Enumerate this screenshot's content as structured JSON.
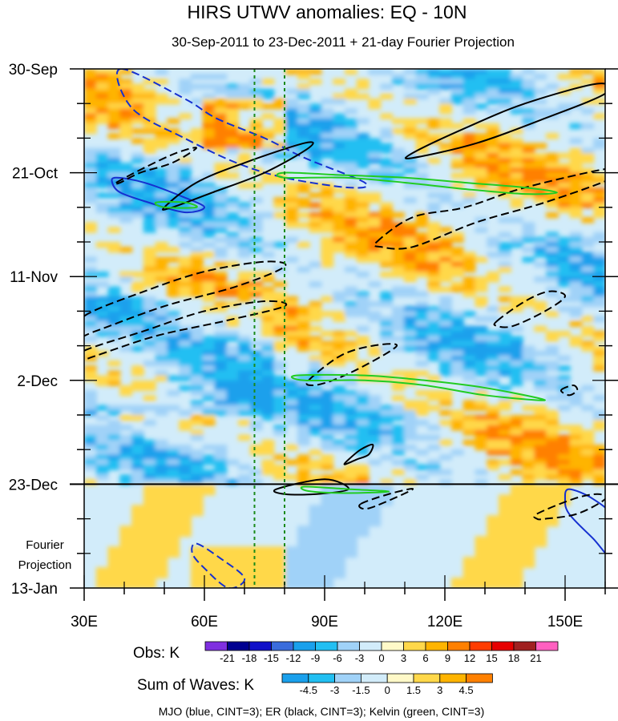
{
  "chart_data": {
    "type": "heatmap",
    "title": "HIRS UTWV anomalies: EQ - 10N",
    "subtitle": "30-Sep-2011 to 23-Dec-2011 + 21-day Fourier Projection",
    "x_axis": {
      "range": [
        30,
        160
      ],
      "ticks": [
        {
          "value": 30,
          "label": "30E"
        },
        {
          "value": 60,
          "label": "60E"
        },
        {
          "value": 90,
          "label": "90E"
        },
        {
          "value": 120,
          "label": "120E"
        },
        {
          "value": 150,
          "label": "150E"
        }
      ]
    },
    "y_axis": {
      "range_days": [
        0,
        105
      ],
      "reversed": true,
      "ticks": [
        {
          "day": 0,
          "label": "30-Sep"
        },
        {
          "day": 21,
          "label": "21-Oct"
        },
        {
          "day": 42,
          "label": "11-Nov"
        },
        {
          "day": 63,
          "label": "2-Dec"
        },
        {
          "day": 84,
          "label": "23-Dec"
        },
        {
          "day": 105,
          "label": "13-Jan"
        }
      ]
    },
    "projection_label": [
      "Fourier",
      "Projection"
    ],
    "projection_start_day": 84,
    "reference_longitudes": [
      72.5,
      80
    ],
    "obs_colorbar": {
      "label": "Obs: K",
      "levels": [
        "-21",
        "-18",
        "-15",
        "-12",
        "-9",
        "-6",
        "-3",
        "0",
        "3",
        "6",
        "9",
        "12",
        "15",
        "18",
        "21"
      ],
      "colors": [
        "#7f2fe0",
        "#000090",
        "#1010c8",
        "#3a6cdc",
        "#1aa0ec",
        "#22bff2",
        "#a0d2f8",
        "#d2ecfa",
        "#fff9c8",
        "#ffd84a",
        "#ffb400",
        "#ff8000",
        "#ff3c00",
        "#e60000",
        "#a02020",
        "#ff60c0"
      ]
    },
    "wave_colorbar": {
      "label": "Sum of Waves: K",
      "levels": [
        "-4.5",
        "-3",
        "-1.5",
        "0",
        "1.5",
        "3",
        "4.5"
      ],
      "colors": [
        "#1aa0ec",
        "#22bff2",
        "#a0d2f8",
        "#d2ecfa",
        "#fff9c8",
        "#ffd84a",
        "#ffb400",
        "#ff8000"
      ]
    },
    "contours": [
      {
        "wave": "MJO",
        "color": "#1530d0",
        "sign": "negative",
        "dashed": true,
        "points": [
          [
            39,
            0
          ],
          [
            55,
            6
          ],
          [
            63,
            10
          ],
          [
            75,
            14
          ],
          [
            85,
            18
          ],
          [
            100,
            23
          ],
          [
            96,
            24
          ],
          [
            80,
            22
          ],
          [
            68,
            19
          ],
          [
            55,
            14
          ],
          [
            42,
            8
          ]
        ]
      },
      {
        "wave": "MJO",
        "color": "#1530d0",
        "sign": "negative",
        "dashed": true,
        "points": [
          [
            58,
            96
          ],
          [
            64,
            99
          ],
          [
            70,
            103
          ],
          [
            66,
            105
          ],
          [
            60,
            101
          ],
          [
            57,
            98
          ]
        ]
      },
      {
        "wave": "MJO",
        "color": "#1530d0",
        "sign": "positive",
        "dashed": false,
        "points": [
          [
            38,
            22
          ],
          [
            45,
            23
          ],
          [
            55,
            26
          ],
          [
            60,
            28
          ],
          [
            55,
            29
          ],
          [
            46,
            27
          ],
          [
            39,
            25
          ],
          [
            37,
            23
          ]
        ]
      },
      {
        "wave": "MJO",
        "color": "#1530d0",
        "sign": "positive",
        "dashed": false,
        "points": [
          [
            151,
            85
          ],
          [
            157,
            87
          ],
          [
            162,
            91
          ],
          [
            162,
            99
          ],
          [
            157,
            95
          ],
          [
            151,
            90
          ],
          [
            150,
            87
          ]
        ]
      },
      {
        "wave": "ER",
        "color": "#000000",
        "sign": "positive",
        "dashed": false,
        "points": [
          [
            112,
            17
          ],
          [
            125,
            12
          ],
          [
            140,
            7
          ],
          [
            158,
            3
          ],
          [
            160,
            5
          ],
          [
            145,
            10
          ],
          [
            128,
            15
          ],
          [
            112,
            18
          ]
        ]
      },
      {
        "wave": "ER",
        "color": "#000000",
        "sign": "positive",
        "dashed": false,
        "points": [
          [
            50,
            28
          ],
          [
            58,
            23
          ],
          [
            70,
            19
          ],
          [
            85,
            15
          ],
          [
            86,
            16
          ],
          [
            75,
            21
          ],
          [
            62,
            25
          ],
          [
            52,
            28
          ]
        ]
      },
      {
        "wave": "ER",
        "color": "#000000",
        "sign": "positive",
        "dashed": false,
        "points": [
          [
            96,
            79
          ],
          [
            99,
            77
          ],
          [
            102,
            76
          ],
          [
            101,
            78
          ],
          [
            98,
            79
          ],
          [
            95,
            80
          ]
        ]
      },
      {
        "wave": "ER",
        "color": "#000000",
        "sign": "positive",
        "dashed": false,
        "points": [
          [
            78,
            85
          ],
          [
            90,
            83
          ],
          [
            96,
            85
          ],
          [
            88,
            86
          ],
          [
            80,
            86
          ]
        ]
      },
      {
        "wave": "ER",
        "color": "#000000",
        "sign": "negative",
        "dashed": true,
        "points": [
          [
            38,
            23
          ],
          [
            45,
            20
          ],
          [
            53,
            17
          ],
          [
            58,
            16
          ],
          [
            52,
            19
          ],
          [
            44,
            21
          ],
          [
            39,
            23
          ]
        ]
      },
      {
        "wave": "ER",
        "color": "#000000",
        "sign": "negative",
        "dashed": true,
        "points": [
          [
            30,
            50
          ],
          [
            45,
            45
          ],
          [
            60,
            41
          ],
          [
            75,
            39
          ],
          [
            80,
            40
          ],
          [
            68,
            44
          ],
          [
            50,
            48
          ],
          [
            33,
            53
          ],
          [
            29,
            54
          ]
        ]
      },
      {
        "wave": "ER",
        "color": "#000000",
        "sign": "negative",
        "dashed": true,
        "points": [
          [
            30,
            57
          ],
          [
            45,
            53
          ],
          [
            60,
            49
          ],
          [
            75,
            47
          ],
          [
            80,
            48
          ],
          [
            65,
            51
          ],
          [
            48,
            54
          ],
          [
            33,
            58
          ],
          [
            29,
            59
          ]
        ]
      },
      {
        "wave": "ER",
        "color": "#000000",
        "sign": "negative",
        "dashed": true,
        "points": [
          [
            103,
            35
          ],
          [
            112,
            30
          ],
          [
            125,
            28
          ],
          [
            140,
            24
          ],
          [
            162,
            20
          ],
          [
            162,
            22
          ],
          [
            145,
            27
          ],
          [
            128,
            31
          ],
          [
            112,
            36
          ],
          [
            104,
            36
          ]
        ]
      },
      {
        "wave": "ER",
        "color": "#000000",
        "sign": "negative",
        "dashed": true,
        "points": [
          [
            133,
            51
          ],
          [
            140,
            47
          ],
          [
            146,
            45
          ],
          [
            150,
            46
          ],
          [
            145,
            49
          ],
          [
            137,
            52
          ],
          [
            133,
            52
          ]
        ]
      },
      {
        "wave": "ER",
        "color": "#000000",
        "sign": "negative",
        "dashed": true,
        "points": [
          [
            86,
            63
          ],
          [
            94,
            58
          ],
          [
            102,
            56
          ],
          [
            108,
            56
          ],
          [
            100,
            60
          ],
          [
            92,
            63
          ],
          [
            87,
            64
          ]
        ]
      },
      {
        "wave": "ER",
        "color": "#000000",
        "sign": "negative",
        "dashed": true,
        "points": [
          [
            99,
            88
          ],
          [
            106,
            86
          ],
          [
            112,
            85
          ],
          [
            104,
            88
          ],
          [
            100,
            89
          ]
        ]
      },
      {
        "wave": "ER",
        "color": "#000000",
        "sign": "negative",
        "dashed": true,
        "points": [
          [
            143,
            90
          ],
          [
            152,
            87
          ],
          [
            158,
            86
          ],
          [
            160,
            87
          ],
          [
            153,
            90
          ],
          [
            145,
            91
          ],
          [
            143,
            91
          ]
        ]
      },
      {
        "wave": "ER",
        "color": "#000000",
        "sign": "negative",
        "dashed": true,
        "points": [
          [
            149,
            65
          ],
          [
            152,
            64
          ],
          [
            153,
            65
          ],
          [
            151,
            66
          ]
        ]
      },
      {
        "wave": "Kelvin",
        "color": "#22cc22",
        "sign": "positive",
        "dashed": false,
        "points": [
          [
            80,
            21
          ],
          [
            95,
            21.5
          ],
          [
            110,
            22
          ],
          [
            125,
            23
          ],
          [
            140,
            24
          ],
          [
            148,
            25
          ],
          [
            140,
            25.3
          ],
          [
            125,
            24.3
          ],
          [
            110,
            23
          ],
          [
            95,
            22
          ],
          [
            80,
            22
          ]
        ]
      },
      {
        "wave": "Kelvin",
        "color": "#22cc22",
        "sign": "positive",
        "dashed": false,
        "points": [
          [
            83,
            62
          ],
          [
            100,
            62
          ],
          [
            115,
            63
          ],
          [
            130,
            64.5
          ],
          [
            145,
            67
          ],
          [
            130,
            66
          ],
          [
            115,
            64
          ],
          [
            100,
            63
          ],
          [
            85,
            63
          ]
        ]
      },
      {
        "wave": "Kelvin",
        "color": "#22cc22",
        "sign": "positive",
        "dashed": false,
        "points": [
          [
            48,
            27
          ],
          [
            55,
            27
          ],
          [
            58,
            28
          ],
          [
            50,
            28
          ]
        ]
      },
      {
        "wave": "Kelvin",
        "color": "#22cc22",
        "sign": "positive",
        "dashed": false,
        "points": [
          [
            85,
            84.5
          ],
          [
            96,
            85
          ],
          [
            106,
            85.5
          ],
          [
            95,
            85.8
          ],
          [
            86,
            85.4
          ]
        ]
      }
    ],
    "legend_text": "MJO (blue, CINT=3); ER (black, CINT=3); Kelvin (green, CINT=3)"
  }
}
